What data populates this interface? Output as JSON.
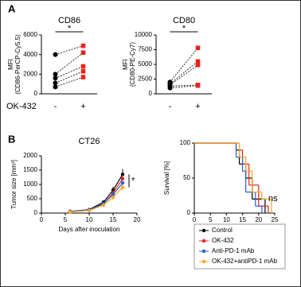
{
  "panels": [
    "A",
    "B"
  ],
  "chart_data": [
    {
      "type": "paired",
      "title": "CD86",
      "ylabel": [
        "MFI",
        "(CD86-PerCP-Cy5.5)"
      ],
      "xlabel": "OK-432",
      "categories": [
        "-",
        "+"
      ],
      "colors": [
        "#000000",
        "#e8231e"
      ],
      "markers": [
        "circle",
        "square"
      ],
      "ylim": [
        0,
        6000
      ],
      "yticks": [
        0,
        2000,
        4000,
        6000
      ],
      "annotation": "*",
      "series": [
        {
          "values": [
            4000,
            4900
          ]
        },
        {
          "values": [
            2000,
            4200
          ]
        },
        {
          "values": [
            1600,
            2800
          ]
        },
        {
          "values": [
            1100,
            2300
          ]
        },
        {
          "values": [
            700,
            1700
          ]
        }
      ]
    },
    {
      "type": "paired",
      "title": "CD80",
      "ylabel": [
        "MFI",
        "(CD80-PE-Cy7)"
      ],
      "categories": [
        "-",
        "+"
      ],
      "colors": [
        "#000000",
        "#e8231e"
      ],
      "markers": [
        "circle",
        "square"
      ],
      "ylim": [
        0,
        10000
      ],
      "yticks": [
        0,
        2500,
        5000,
        7500,
        10000
      ],
      "annotation": "*",
      "series": [
        {
          "values": [
            2000,
            7800
          ]
        },
        {
          "values": [
            1700,
            5500
          ]
        },
        {
          "values": [
            1500,
            4900
          ]
        },
        {
          "values": [
            1300,
            1500
          ]
        },
        {
          "values": [
            1000,
            1400
          ]
        }
      ]
    },
    {
      "type": "line",
      "title": "CT26",
      "ylabel": [
        "Tumor size [mm³]"
      ],
      "xlabel": "Days after inoculation",
      "x": [
        6,
        10,
        13,
        15,
        17
      ],
      "xlim": [
        0,
        20
      ],
      "xticks": [
        0,
        5,
        10,
        15,
        20
      ],
      "ylim": [
        0,
        2000
      ],
      "yticks": [
        0,
        500,
        1000,
        1500,
        2000
      ],
      "annotation": "*",
      "series": [
        {
          "name": "Control",
          "color": "#000000",
          "values": [
            60,
            120,
            380,
            800,
            1350
          ],
          "errors": [
            10,
            20,
            60,
            120,
            180
          ]
        },
        {
          "name": "OK-432",
          "color": "#e8231e",
          "values": [
            50,
            100,
            320,
            700,
            1200
          ],
          "errors": [
            10,
            20,
            50,
            100,
            150
          ]
        },
        {
          "name": "Anti-PD-1 mAb",
          "color": "#2a5bd7",
          "values": [
            55,
            110,
            330,
            650,
            1050
          ],
          "errors": [
            10,
            20,
            50,
            90,
            130
          ]
        },
        {
          "name": "OK-432+antiPD-1 mAb",
          "color": "#f5a623",
          "values": [
            40,
            90,
            280,
            550,
            900
          ],
          "errors": [
            10,
            15,
            40,
            80,
            110
          ]
        }
      ]
    },
    {
      "type": "step",
      "ylabel": [
        "Survival [%]"
      ],
      "xlabel": "Days after inoculation",
      "xlim": [
        0,
        25
      ],
      "xticks": [
        0,
        5,
        10,
        15,
        20,
        25
      ],
      "ylim": [
        0,
        100
      ],
      "yticks": [
        0,
        50,
        100
      ],
      "annotation": "ns",
      "series": [
        {
          "color": "#000000",
          "x": [
            0,
            13,
            14,
            16,
            18,
            22
          ],
          "values": [
            100,
            90,
            70,
            50,
            20,
            0
          ]
        },
        {
          "color": "#e8231e",
          "x": [
            0,
            14,
            15,
            17,
            20,
            23
          ],
          "values": [
            100,
            90,
            70,
            40,
            10,
            0
          ]
        },
        {
          "color": "#2a5bd7",
          "x": [
            0,
            13,
            15,
            16,
            19,
            21
          ],
          "values": [
            100,
            80,
            60,
            30,
            10,
            0
          ]
        },
        {
          "color": "#f5a623",
          "x": [
            0,
            14,
            16,
            18,
            21,
            24
          ],
          "values": [
            100,
            80,
            60,
            30,
            20,
            0
          ]
        }
      ]
    }
  ]
}
